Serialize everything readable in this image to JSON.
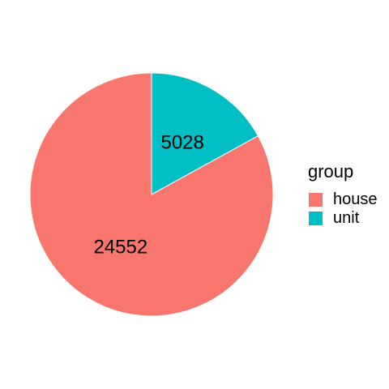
{
  "chart_data": {
    "type": "pie",
    "legend": {
      "title": "group",
      "placement": "right"
    },
    "slices": [
      {
        "label": "house",
        "value": 24552,
        "color": "#F8766D",
        "display": "24552"
      },
      {
        "label": "unit",
        "value": 5028,
        "color": "#00BFC4",
        "display": "5028"
      }
    ],
    "start_angle": "12 o'clock",
    "direction": "clockwise",
    "slice_border_color": "#ffffff"
  }
}
